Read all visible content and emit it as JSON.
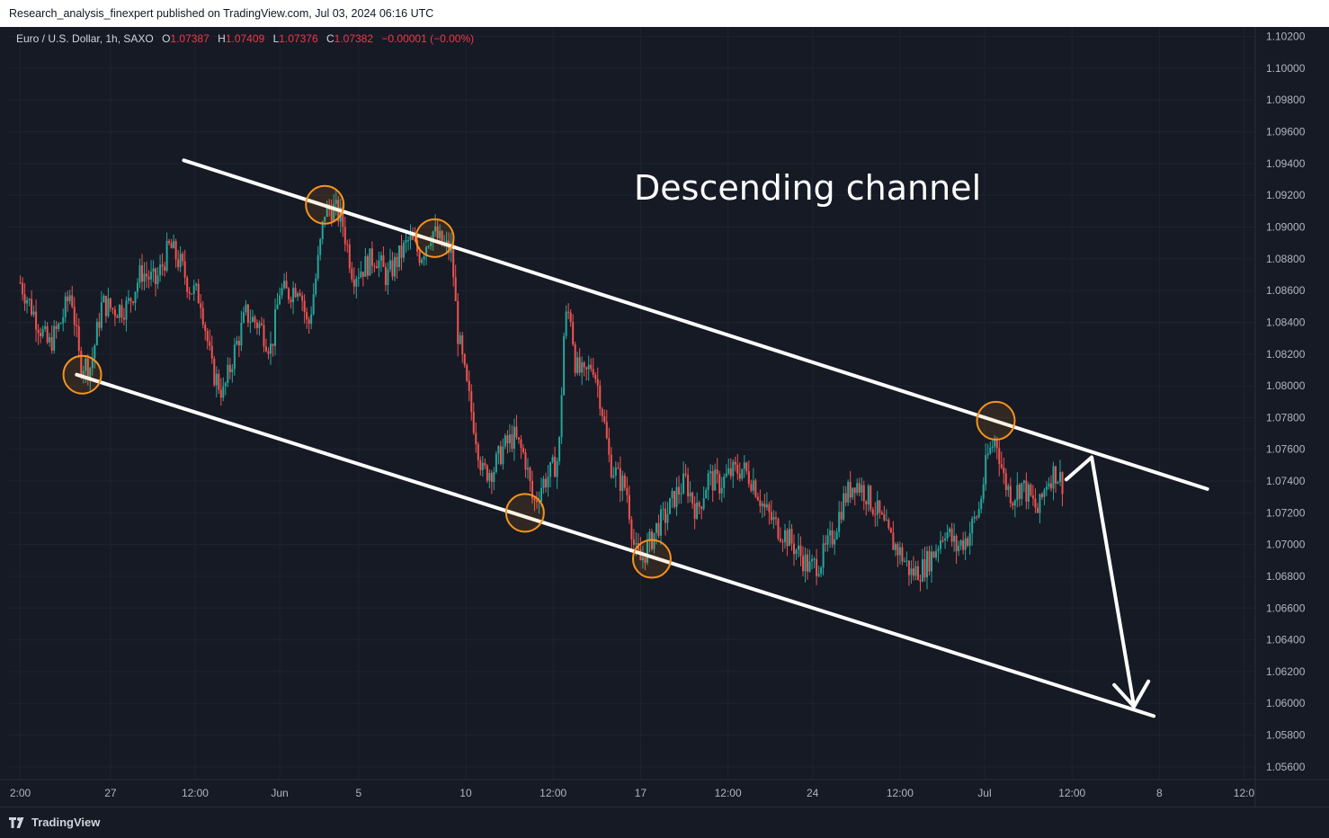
{
  "header": {
    "published": "Research_analysis_finexpert published on TradingView.com, Jul 03, 2024 06:16 UTC"
  },
  "legend": {
    "symbol": "Euro / U.S. Dollar, 1h, SAXO",
    "o_label": "O",
    "o_value": "1.07387",
    "h_label": "H",
    "h_value": "1.07409",
    "l_label": "L",
    "l_value": "1.07376",
    "c_label": "C",
    "c_value": "1.07382",
    "change": "−0.00001 (−0.00%)"
  },
  "annotation": {
    "text": "Descending channel"
  },
  "footer": {
    "brand": "TradingView",
    "logo_icon": "tradingview-logo-icon"
  },
  "colors": {
    "background": "#161a25",
    "up": "#26a69a",
    "down": "#ef5350",
    "channel": "#ffffff",
    "marker": "#f7931a",
    "change": "#f23645"
  },
  "chart_data": {
    "type": "candlestick",
    "interval": "1h",
    "y_ticks": [
      1.102,
      1.1,
      1.098,
      1.096,
      1.094,
      1.092,
      1.09,
      1.088,
      1.086,
      1.084,
      1.082,
      1.08,
      1.078,
      1.076,
      1.074,
      1.072,
      1.07,
      1.068,
      1.066,
      1.064,
      1.062,
      1.06,
      1.058,
      1.056
    ],
    "ylim": [
      1.0552,
      1.1026
    ],
    "x_ticks": [
      {
        "label": "2:00",
        "pos": 0
      },
      {
        "label": "27",
        "pos": 3.2
      },
      {
        "label": "12:00",
        "pos": 6.2
      },
      {
        "label": "Jun",
        "pos": 9.2
      },
      {
        "label": "5",
        "pos": 12.0
      },
      {
        "label": "10",
        "pos": 15.8
      },
      {
        "label": "12:00",
        "pos": 18.9
      },
      {
        "label": "17",
        "pos": 22.0
      },
      {
        "label": "12:00",
        "pos": 25.1
      },
      {
        "label": "24",
        "pos": 28.1
      },
      {
        "label": "12:00",
        "pos": 31.2
      },
      {
        "label": "Jul",
        "pos": 34.2
      },
      {
        "label": "12:00",
        "pos": 37.3
      },
      {
        "label": "8",
        "pos": 40.4
      },
      {
        "label": "12:0",
        "pos": 43.4
      }
    ],
    "xlim": [
      -0.4,
      43.8
    ],
    "price_path": [
      [
        0.0,
        1.0865
      ],
      [
        0.5,
        1.0845
      ],
      [
        1.0,
        1.0825
      ],
      [
        1.4,
        1.0838
      ],
      [
        1.8,
        1.086
      ],
      [
        2.1,
        1.0815
      ],
      [
        2.5,
        1.0812
      ],
      [
        2.9,
        1.0852
      ],
      [
        3.3,
        1.0848
      ],
      [
        3.8,
        1.085
      ],
      [
        4.3,
        1.0872
      ],
      [
        4.8,
        1.0865
      ],
      [
        5.3,
        1.0888
      ],
      [
        5.7,
        1.0876
      ],
      [
        6.0,
        1.0862
      ],
      [
        6.4,
        1.0855
      ],
      [
        6.8,
        1.081
      ],
      [
        7.2,
        1.0795
      ],
      [
        7.6,
        1.0822
      ],
      [
        8.0,
        1.0845
      ],
      [
        8.5,
        1.0838
      ],
      [
        8.9,
        1.0823
      ],
      [
        9.2,
        1.086
      ],
      [
        9.5,
        1.0858
      ],
      [
        9.9,
        1.0865
      ],
      [
        10.2,
        1.0835
      ],
      [
        10.5,
        1.087
      ],
      [
        10.8,
        1.091
      ],
      [
        11.1,
        1.0912
      ],
      [
        11.4,
        1.0905
      ],
      [
        11.8,
        1.087
      ],
      [
        12.2,
        1.0875
      ],
      [
        12.6,
        1.0882
      ],
      [
        13.0,
        1.0868
      ],
      [
        13.4,
        1.088
      ],
      [
        13.8,
        1.0892
      ],
      [
        14.2,
        1.0882
      ],
      [
        14.6,
        1.0898
      ],
      [
        15.0,
        1.0888
      ],
      [
        15.3,
        1.0885
      ],
      [
        15.5,
        1.0835
      ],
      [
        15.8,
        1.0802
      ],
      [
        16.1,
        1.0775
      ],
      [
        16.4,
        1.0745
      ],
      [
        16.8,
        1.0748
      ],
      [
        17.1,
        1.076
      ],
      [
        17.5,
        1.0768
      ],
      [
        17.9,
        1.0755
      ],
      [
        18.2,
        1.0725
      ],
      [
        18.5,
        1.0738
      ],
      [
        18.8,
        1.0745
      ],
      [
        19.1,
        1.0755
      ],
      [
        19.3,
        1.084
      ],
      [
        19.5,
        1.0848
      ],
      [
        19.7,
        1.0812
      ],
      [
        20.0,
        1.0805
      ],
      [
        20.3,
        1.0815
      ],
      [
        20.6,
        1.079
      ],
      [
        20.9,
        1.0752
      ],
      [
        21.2,
        1.0742
      ],
      [
        21.5,
        1.0735
      ],
      [
        21.8,
        1.0695
      ],
      [
        22.0,
        1.069
      ],
      [
        22.3,
        1.07
      ],
      [
        22.6,
        1.0712
      ],
      [
        22.9,
        1.0718
      ],
      [
        23.2,
        1.073
      ],
      [
        23.6,
        1.074
      ],
      [
        24.0,
        1.072
      ],
      [
        24.4,
        1.0742
      ],
      [
        24.8,
        1.0738
      ],
      [
        25.2,
        1.0745
      ],
      [
        25.6,
        1.0748
      ],
      [
        26.0,
        1.074
      ],
      [
        26.4,
        1.0722
      ],
      [
        26.8,
        1.0712
      ],
      [
        27.2,
        1.0705
      ],
      [
        27.6,
        1.0695
      ],
      [
        28.0,
        1.0685
      ],
      [
        28.4,
        1.069
      ],
      [
        28.8,
        1.0705
      ],
      [
        29.2,
        1.0728
      ],
      [
        29.6,
        1.074
      ],
      [
        30.0,
        1.0732
      ],
      [
        30.4,
        1.072
      ],
      [
        30.8,
        1.0705
      ],
      [
        31.2,
        1.0695
      ],
      [
        31.6,
        1.0682
      ],
      [
        32.0,
        1.0685
      ],
      [
        32.4,
        1.0695
      ],
      [
        32.8,
        1.071
      ],
      [
        33.2,
        1.0698
      ],
      [
        33.6,
        1.0705
      ],
      [
        34.0,
        1.0722
      ],
      [
        34.3,
        1.0755
      ],
      [
        34.6,
        1.0768
      ],
      [
        34.9,
        1.074
      ],
      [
        35.2,
        1.073
      ],
      [
        35.5,
        1.0738
      ],
      [
        35.8,
        1.073
      ],
      [
        36.1,
        1.072
      ],
      [
        36.4,
        1.074
      ],
      [
        36.7,
        1.0746
      ],
      [
        37.0,
        1.0738
      ]
    ],
    "channel_upper": [
      [
        5.8,
        1.0942
      ],
      [
        42.1,
        1.0735
      ]
    ],
    "channel_lower": [
      [
        2.0,
        1.0807
      ],
      [
        40.2,
        1.0592
      ]
    ],
    "touch_points": [
      [
        2.2,
        1.0807
      ],
      [
        10.8,
        1.0914
      ],
      [
        14.7,
        1.0893
      ],
      [
        17.9,
        1.072
      ],
      [
        22.4,
        1.0691
      ],
      [
        34.6,
        1.0778
      ]
    ],
    "projection": [
      [
        37.1,
        1.0741
      ],
      [
        38.0,
        1.0755
      ],
      [
        39.5,
        1.0598
      ]
    ],
    "last_price": 1.07382
  }
}
